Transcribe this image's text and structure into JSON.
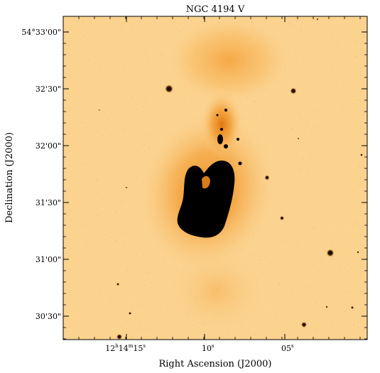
{
  "figure": {
    "title": "NGC 4194 V",
    "xlabel": "Right Ascension (J2000)",
    "ylabel": "Declination (J2000)",
    "xticks": {
      "ra_15": {
        "h": "12",
        "hs": "h",
        "m": "14",
        "ms": "m",
        "s": "15",
        "ss": "s"
      },
      "ra_10": {
        "s": "10",
        "ss": "s"
      },
      "ra_05": {
        "s": "05",
        "ss": "s"
      }
    },
    "yticks": [
      "54°33'00\"",
      "32'30\"",
      "32'00\"",
      "31'30\"",
      "31'00\"",
      "30'30\""
    ]
  },
  "colors": {
    "background": "#fbd28e",
    "halo": "#f6a53a",
    "core": "#000000",
    "frame": "#000000"
  }
}
